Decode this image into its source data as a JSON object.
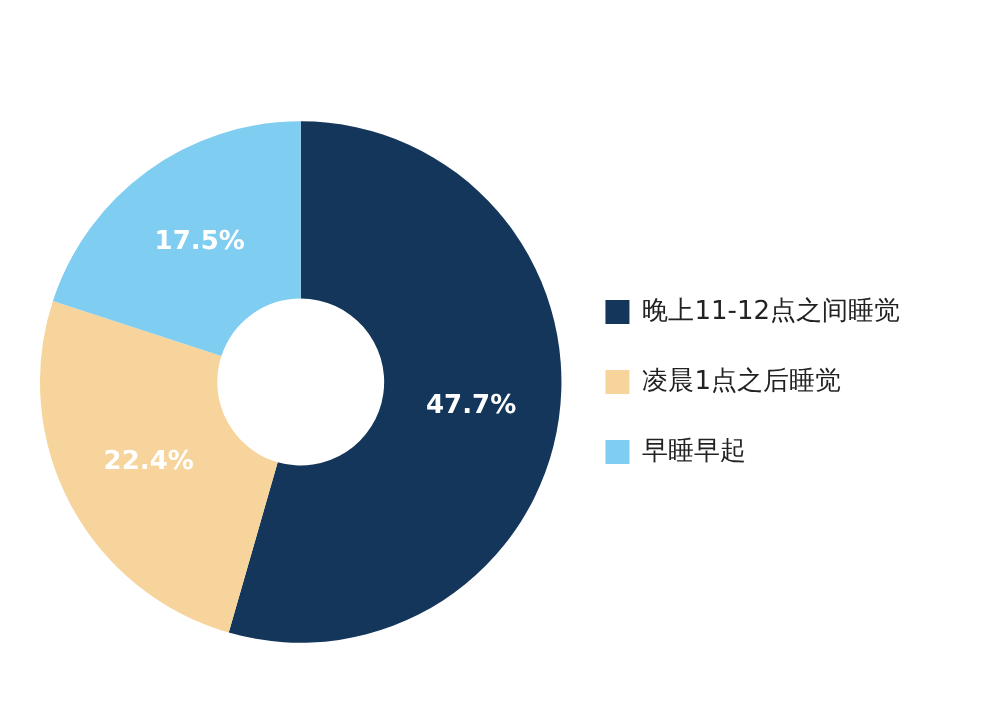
{
  "chart_data": {
    "type": "donut",
    "categories": [
      "晚上11-12点之间睡觉",
      "凌晨1点之后睡觉",
      "早睡早起"
    ],
    "values": [
      47.7,
      22.4,
      17.5
    ],
    "value_labels": [
      "47.7%",
      "22.4%",
      "17.5%"
    ],
    "colors": [
      "#14365a",
      "#f6d49b",
      "#7fcdf1"
    ],
    "legend": "right"
  }
}
